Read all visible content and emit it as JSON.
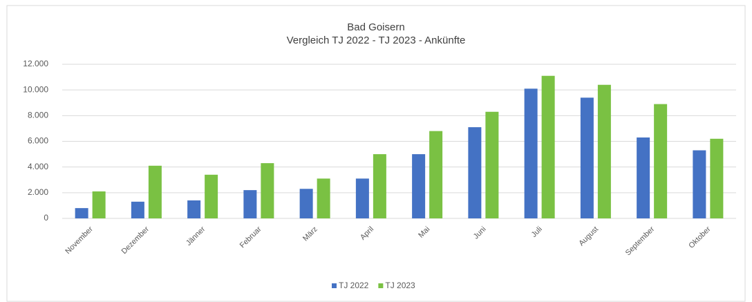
{
  "chart_data": {
    "type": "bar",
    "title": "Bad Goisern",
    "subtitle": "Vergleich TJ 2022 - TJ 2023 - Ankünfte",
    "categories": [
      "November",
      "Dezember",
      "Jänner",
      "Februar",
      "März",
      "April",
      "Mai",
      "Juni",
      "Juli",
      "August",
      "September",
      "Oktober"
    ],
    "series": [
      {
        "name": "TJ 2022",
        "color": "#4472c4",
        "values": [
          800,
          1300,
          1400,
          2200,
          2300,
          3100,
          5000,
          7100,
          10100,
          9400,
          6300,
          5300
        ]
      },
      {
        "name": "TJ 2023",
        "color": "#7ac143",
        "values": [
          2100,
          4100,
          3400,
          4300,
          3100,
          5000,
          6800,
          8300,
          11100,
          10400,
          8900,
          6200
        ]
      }
    ],
    "ylim": [
      0,
      12000
    ],
    "yticks": [
      0,
      {
        "value": 2000,
        "label": "2.000"
      },
      {
        "value": 4000,
        "label": "4.000"
      },
      {
        "value": 6000,
        "label": "6.000"
      },
      {
        "value": 8000,
        "label": "8.000"
      },
      {
        "value": 10000,
        "label": "10.000"
      },
      {
        "value": 12000,
        "label": "12.000"
      }
    ],
    "grid": true,
    "legend": "bottom"
  }
}
